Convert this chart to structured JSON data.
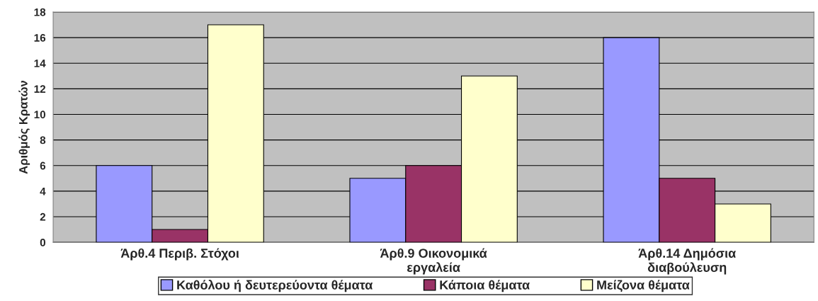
{
  "chart_data": {
    "type": "bar",
    "ylabel": "Αριθμός Κρατών",
    "categories": [
      "Άρθ.4 Περιβ. Στόχοι",
      "Άρθ.9 Οικονομικά\nεργαλεία",
      "Άρθ.14 Δημόσια\nδιαβούλευση"
    ],
    "series": [
      {
        "name": "Καθόλου ή δευτερεύοντα θέματα",
        "color": "#9999ff",
        "values": [
          6,
          5,
          16
        ]
      },
      {
        "name": "Κάποια θέματα",
        "color": "#993366",
        "values": [
          1,
          6,
          5
        ]
      },
      {
        "name": "Μείζονα θέματα",
        "color": "#ffffcc",
        "values": [
          17,
          13,
          3
        ]
      }
    ],
    "ylim": [
      0,
      18
    ],
    "yticks": [
      0,
      2,
      4,
      6,
      8,
      10,
      12,
      14,
      16,
      18
    ],
    "grid": "y",
    "legend": "bottom"
  }
}
